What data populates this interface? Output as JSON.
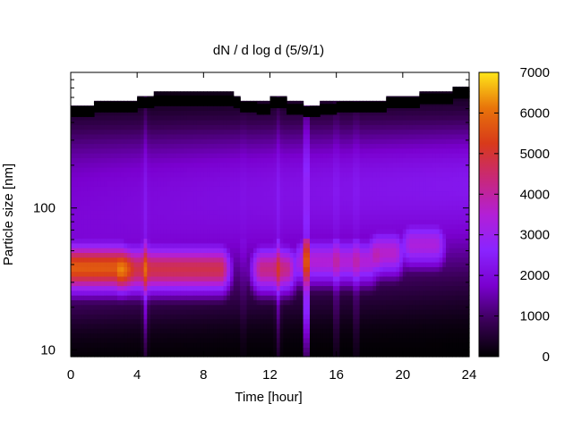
{
  "chart_data": {
    "type": "heatmap",
    "title": "dN / d log d (5/9/1)",
    "xlabel": "Time [hour]",
    "ylabel": "Particle size [nm]",
    "x_range": [
      0,
      24
    ],
    "x_ticks": [
      0,
      4,
      8,
      12,
      16,
      20,
      24
    ],
    "y_scale": "log",
    "y_range": [
      9,
      900
    ],
    "y_ticks": [
      10,
      100
    ],
    "colorbar": {
      "range": [
        0,
        7000
      ],
      "ticks": [
        0,
        1000,
        2000,
        3000,
        4000,
        5000,
        6000,
        7000
      ],
      "palette": [
        "#000000",
        "#3a0057",
        "#7a00cf",
        "#8a24ff",
        "#b31fd6",
        "#c8287a",
        "#d83a1a",
        "#e8740a",
        "#ffe619"
      ]
    },
    "upper_cutoff_nm": [
      {
        "x": 0,
        "y": 520
      },
      {
        "x": 1.5,
        "y": 560
      },
      {
        "x": 4,
        "y": 600
      },
      {
        "x": 5,
        "y": 620
      },
      {
        "x": 9.8,
        "y": 600
      },
      {
        "x": 10.2,
        "y": 560
      },
      {
        "x": 11.2,
        "y": 540
      },
      {
        "x": 12,
        "y": 600
      },
      {
        "x": 13,
        "y": 540
      },
      {
        "x": 14,
        "y": 520
      },
      {
        "x": 15,
        "y": 540
      },
      {
        "x": 16,
        "y": 560
      },
      {
        "x": 18,
        "y": 560
      },
      {
        "x": 19,
        "y": 600
      },
      {
        "x": 21,
        "y": 640
      },
      {
        "x": 23,
        "y": 700
      },
      {
        "x": 24,
        "y": 740
      }
    ],
    "modes": [
      {
        "t_start": 0,
        "t_end": 3,
        "center_nm": 38,
        "peak": 5200
      },
      {
        "t_start": 3,
        "t_end": 9,
        "center_nm": 37,
        "peak": 4300
      },
      {
        "t_start": 11.5,
        "t_end": 13,
        "center_nm": 37,
        "peak": 3800
      },
      {
        "t_start": 14,
        "t_end": 18,
        "center_nm": 42,
        "peak": 3000
      },
      {
        "t_start": 18.5,
        "t_end": 19.5,
        "center_nm": 48,
        "peak": 3100
      },
      {
        "t_start": 20.5,
        "t_end": 22,
        "center_nm": 55,
        "peak": 2800
      }
    ],
    "spikes": [
      {
        "x": 4.5,
        "value": 1200
      },
      {
        "x": 10.4,
        "value": 300
      },
      {
        "x": 12.5,
        "value": 900
      },
      {
        "x": 14.2,
        "value": 3500
      },
      {
        "x": 16.0,
        "value": 800
      },
      {
        "x": 17.2,
        "value": 700
      }
    ]
  }
}
